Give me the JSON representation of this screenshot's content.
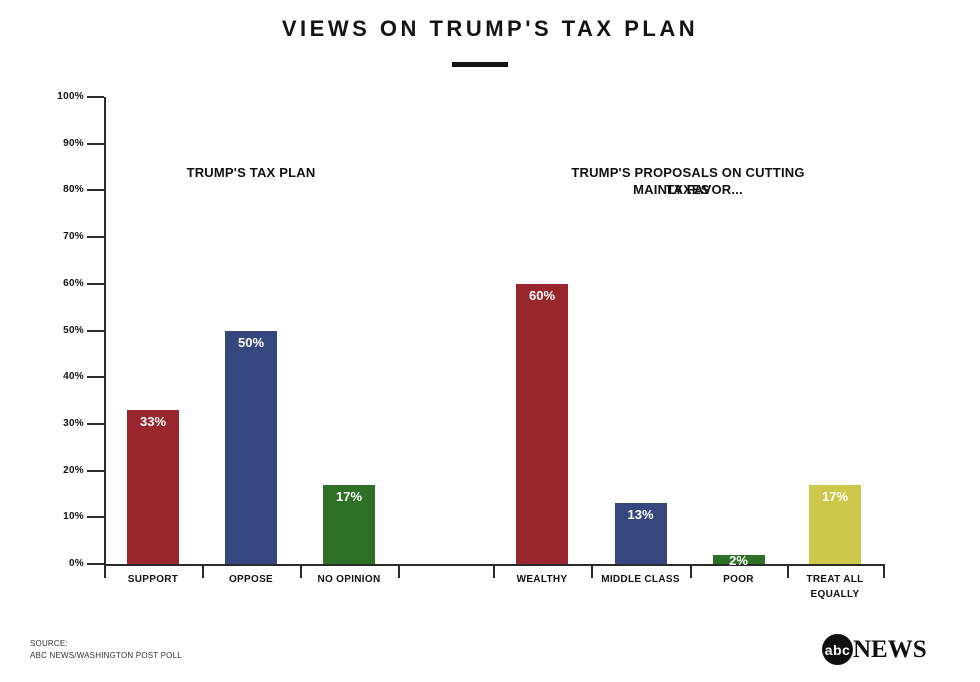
{
  "source": {
    "line1": "SOURCE:",
    "line2": "ABC NEWS/WASHINGTON POST POLL"
  },
  "logo": {
    "circle_text": "abc",
    "wordmark": "NEWS"
  },
  "colors": {
    "red": "#9a262d",
    "blue": "#35477e",
    "green": "#2d7026",
    "yellow": "#cdc74a",
    "axis": "#2b2b2b",
    "text": "#111111"
  },
  "chart_data": {
    "type": "bar",
    "title": "VIEWS ON TRUMP'S TAX PLAN",
    "xlabel": "",
    "ylabel": "",
    "ylim": [
      0,
      100
    ],
    "grid": false,
    "legend": "none",
    "y_ticks": [
      "0%",
      "10%",
      "20%",
      "30%",
      "40%",
      "50%",
      "60%",
      "70%",
      "80%",
      "90%",
      "100%"
    ],
    "groups": [
      {
        "label": "TRUMP'S TAX PLAN",
        "label_lines": [
          "TRUMP'S TAX PLAN"
        ],
        "categories": [
          "SUPPORT",
          "OPPOSE",
          "NO OPINION"
        ],
        "values": [
          33,
          50,
          17
        ],
        "value_labels": [
          "33%",
          "50%",
          "17%"
        ],
        "bar_colors": [
          "#9a262d",
          "#35477e",
          "#2d7026"
        ]
      },
      {
        "label": "TRUMP'S PROPOSALS ON CUTTING TAXES MAINLY FAVOR...",
        "label_lines": [
          "TRUMP'S PROPOSALS ON CUTTING TAXES",
          "MAINLY FAVOR..."
        ],
        "categories": [
          "WEALTHY",
          "MIDDLE CLASS",
          "POOR",
          "TREAT ALL EQUALLY"
        ],
        "values": [
          60,
          13,
          2,
          17
        ],
        "value_labels": [
          "60%",
          "13%",
          "2%",
          "17%"
        ],
        "bar_colors": [
          "#9a262d",
          "#35477e",
          "#2d7026",
          "#cdc74a"
        ]
      }
    ]
  }
}
